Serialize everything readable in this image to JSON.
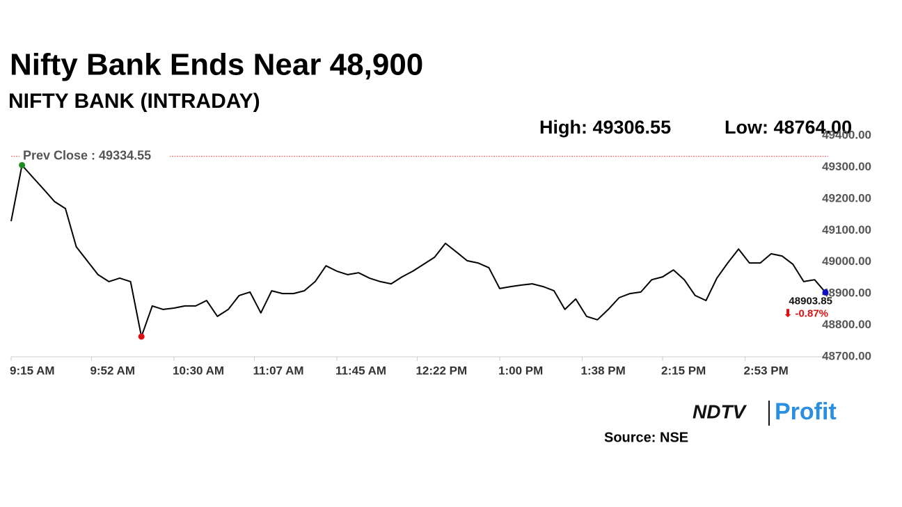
{
  "chart_data": {
    "type": "line",
    "title": "Nifty Bank Ends Near 48,900",
    "subtitle": "NIFTY BANK (INTRADAY)",
    "annotations": [
      "High: 49306.55",
      "Low: 48764.00"
    ],
    "prev_close": {
      "value": 49334.55,
      "label": "Prev Close : 49334.55"
    },
    "end_label": "48903.85",
    "change_label": "⬇ -0.87%",
    "source": "Source: NSE",
    "logo": {
      "left": "NDTV",
      "right": "Profit"
    },
    "x": [
      "9:15 AM",
      "9:20 AM",
      "9:25 AM",
      "9:30 AM",
      "9:35 AM",
      "9:40 AM",
      "9:45 AM",
      "9:50 AM",
      "9:55 AM",
      "10:00 AM",
      "10:05 AM",
      "10:10 AM",
      "10:15 AM",
      "10:20 AM",
      "10:25 AM",
      "10:30 AM",
      "10:35 AM",
      "10:40 AM",
      "10:45 AM",
      "10:50 AM",
      "10:55 AM",
      "11:00 AM",
      "11:05 AM",
      "11:10 AM",
      "11:15 AM",
      "11:20 AM",
      "11:25 AM",
      "11:30 AM",
      "11:35 AM",
      "11:40 AM",
      "11:45 AM",
      "11:50 AM",
      "11:55 AM",
      "12:00 PM",
      "12:05 PM",
      "12:10 PM",
      "12:15 PM",
      "12:20 PM",
      "12:25 PM",
      "12:30 PM",
      "12:35 PM",
      "12:40 PM",
      "12:45 PM",
      "12:50 PM",
      "12:55 PM",
      "1:00 PM",
      "1:05 PM",
      "1:10 PM",
      "1:15 PM",
      "1:20 PM",
      "1:25 PM",
      "1:30 PM",
      "1:35 PM",
      "1:40 PM",
      "1:45 PM",
      "1:50 PM",
      "1:55 PM",
      "2:00 PM",
      "2:05 PM",
      "2:10 PM",
      "2:15 PM",
      "2:20 PM",
      "2:25 PM",
      "2:30 PM",
      "2:35 PM",
      "2:40 PM",
      "2:45 PM",
      "2:50 PM",
      "2:55 PM",
      "3:00 PM",
      "3:05 PM",
      "3:10 PM",
      "3:15 PM",
      "3:20 PM",
      "3:25 PM",
      "3:30 PM"
    ],
    "series": [
      {
        "name": "NIFTY BANK",
        "color": "#000000",
        "values": [
          49129,
          49306.55,
          49268,
          49230,
          49191,
          49169,
          49048,
          49004,
          48960,
          48938,
          48949,
          48938,
          48764,
          48861,
          48850,
          48854,
          48861,
          48861,
          48878,
          48828,
          48850,
          48894,
          48905,
          48839,
          48909,
          48900,
          48900,
          48909,
          48938,
          48988,
          48971,
          48960,
          48966,
          48949,
          48938,
          48931,
          48953,
          48971,
          48993,
          49015,
          49059,
          49032,
          49004,
          48997,
          48982,
          48916,
          48922,
          48927,
          48931,
          48922,
          48909,
          48850,
          48883,
          48828,
          48817,
          48850,
          48887,
          48900,
          48905,
          48944,
          48953,
          48975,
          48944,
          48894,
          48878,
          48949,
          48997,
          49041,
          48997,
          48997,
          49026,
          49019,
          48993,
          48938,
          48944,
          48903.85
        ]
      }
    ],
    "markers": [
      {
        "x": "9:20 AM",
        "y": 49306.55,
        "color": "#1f8a1f"
      },
      {
        "x": "10:15 AM",
        "y": 48764,
        "color": "#e01010"
      },
      {
        "x": "3:30 PM",
        "y": 48903.85,
        "color": "#1010c0"
      }
    ],
    "prev_close_color": "#e05050",
    "change_color": "#e01010",
    "xticks": [
      "9:15 AM",
      "9:52 AM",
      "10:30 AM",
      "11:07 AM",
      "11:45 AM",
      "12:22 PM",
      "1:00 PM",
      "1:38 PM",
      "2:15 PM",
      "2:53 PM"
    ],
    "ylim": [
      48700,
      49400
    ],
    "yticks": [
      {
        "value": 48700,
        "label": "48700.00"
      },
      {
        "value": 48800,
        "label": "48800.00"
      },
      {
        "value": 48900,
        "label": "48900.00"
      },
      {
        "value": 49000,
        "label": "49000.00"
      },
      {
        "value": 49100,
        "label": "49100.00"
      },
      {
        "value": 49200,
        "label": "49200.00"
      },
      {
        "value": 49300,
        "label": "49300.00"
      },
      {
        "value": 49400,
        "label": "49400.00"
      }
    ],
    "grid": false
  }
}
